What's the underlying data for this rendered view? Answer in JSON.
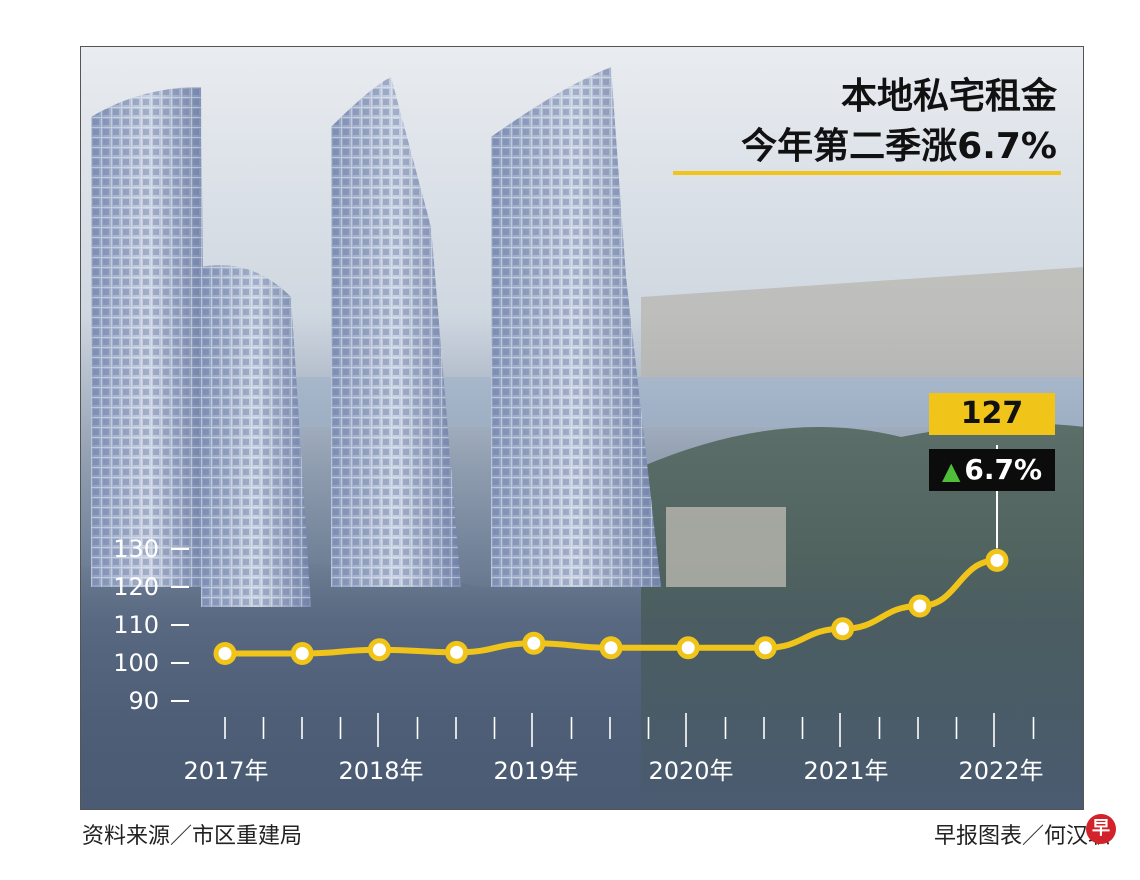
{
  "title_line1": "本地私宅租金",
  "title_line2": "今年第二季涨6.7%",
  "callout": {
    "value": "127",
    "arrow": "▲",
    "change": "6.7%"
  },
  "footer": {
    "source": "资料来源／市区重建局",
    "credit": "早报图表／何汉职",
    "logo": "早"
  },
  "colors": {
    "line": "#f0c419",
    "callout_value_bg": "#f0c419",
    "callout_change_bg": "#0c0c0c",
    "up_arrow": "#4fbf3a"
  },
  "chart_data": {
    "type": "line",
    "title": "本地私宅租金 今年第二季涨6.7%",
    "yticks": [
      90,
      100,
      110,
      120,
      130
    ],
    "ylim": [
      90,
      130
    ],
    "year_labels": [
      "2017年",
      "2018年",
      "2019年",
      "2020年",
      "2021年",
      "2022年"
    ],
    "x": [
      "2017 Q1",
      "2017 Q3",
      "2018 Q1",
      "2018 Q3",
      "2019 Q1",
      "2019 Q3",
      "2020 Q1",
      "2020 Q3",
      "2021 Q1",
      "2021 Q3",
      "2022 Q2"
    ],
    "values": [
      102.5,
      102.5,
      103.5,
      102.8,
      105.2,
      104.0,
      104.0,
      104.0,
      109.0,
      115.0,
      127.0
    ],
    "grid": false
  }
}
